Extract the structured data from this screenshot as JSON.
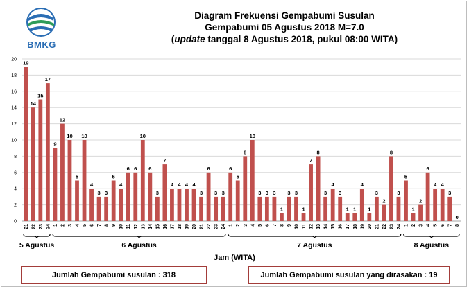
{
  "header": {
    "logo_text": "BMKG",
    "title_line1": "Diagram Frekuensi Gempabumi Susulan",
    "title_line2": "Gempabumi 05 Agustus 2018 M=7.0",
    "title_line3_open": "(",
    "title_line3_em": "update",
    "title_line3_rest": " tanggal 8 Agustus 2018, pukul  08:00 WITA)"
  },
  "colors": {
    "bar": "#c0504d",
    "grid": "#d9d9d9",
    "box_border": "#a33d3a"
  },
  "chart_data": {
    "type": "bar",
    "title": "Diagram Frekuensi Gempabumi Susulan",
    "xlabel": "Jam (WITA)",
    "ylabel": "",
    "ylim": [
      0,
      20
    ],
    "yticks": [
      0,
      2,
      4,
      6,
      8,
      10,
      12,
      14,
      16,
      18,
      20
    ],
    "grid": true,
    "categories": [
      "21",
      "22",
      "23",
      "24",
      "1",
      "2",
      "3",
      "4",
      "5",
      "6",
      "7",
      "8",
      "9",
      "10",
      "11",
      "12",
      "13",
      "14",
      "15",
      "16",
      "17",
      "18",
      "19",
      "20",
      "21",
      "22",
      "23",
      "24",
      "1",
      "2",
      "3",
      "4",
      "5",
      "6",
      "7",
      "8",
      "9",
      "10",
      "11",
      "12",
      "13",
      "14",
      "15",
      "16",
      "17",
      "18",
      "19",
      "20",
      "21",
      "22",
      "23",
      "24",
      "1",
      "2",
      "3",
      "4",
      "5",
      "6",
      "7",
      "8"
    ],
    "values": [
      19,
      14,
      15,
      17,
      9,
      12,
      10,
      5,
      10,
      4,
      3,
      3,
      5,
      4,
      6,
      6,
      10,
      6,
      3,
      7,
      4,
      4,
      4,
      4,
      3,
      6,
      3,
      3,
      6,
      5,
      8,
      10,
      3,
      3,
      3,
      1,
      3,
      3,
      1,
      7,
      8,
      3,
      4,
      3,
      1,
      1,
      4,
      1,
      3,
      2,
      8,
      3,
      5,
      1,
      2,
      6,
      4,
      4,
      3,
      0
    ],
    "day_groups": [
      {
        "label": "5 Agustus",
        "start": 0,
        "end": 3
      },
      {
        "label": "6 Agustus",
        "start": 4,
        "end": 27
      },
      {
        "label": "7 Agustus",
        "start": 28,
        "end": 51
      },
      {
        "label": "8 Agustus",
        "start": 52,
        "end": 59
      }
    ]
  },
  "summary": {
    "total": "Jumlah Gempabumi  susulan  : 318",
    "felt": "Jumlah Gempabumi susulan yang dirasakan : 19"
  }
}
